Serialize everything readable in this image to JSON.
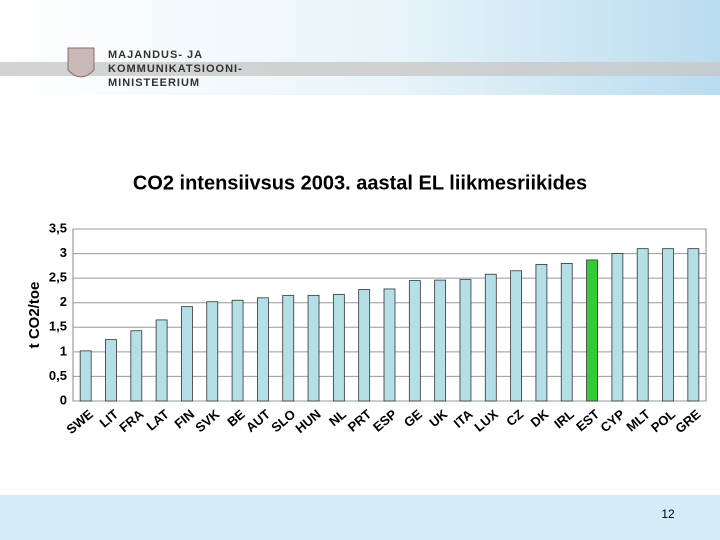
{
  "header": {
    "logo_lines": [
      "MAJANDUS- JA",
      "KOMMUNIKATSIOONI-",
      "MINISTEERIUM"
    ]
  },
  "chart_data": {
    "type": "bar",
    "title": "CO2 intensiivsus 2003. aastal EL liikmesriikides",
    "y_label": "t CO2/toe",
    "categories": [
      "SWE",
      "LIT",
      "FRA",
      "LAT",
      "FIN",
      "SVK",
      "BE",
      "AUT",
      "SLO",
      "HUN",
      "NL",
      "PRT",
      "ESP",
      "GE",
      "UK",
      "ITA",
      "LUX",
      "CZ",
      "DK",
      "IRL",
      "EST",
      "CYP",
      "MLT",
      "POL",
      "GRE"
    ],
    "values": [
      1.02,
      1.25,
      1.43,
      1.65,
      1.92,
      2.02,
      2.05,
      2.1,
      2.15,
      2.15,
      2.17,
      2.27,
      2.28,
      2.45,
      2.46,
      2.47,
      2.58,
      2.65,
      2.78,
      2.8,
      2.87,
      3.0,
      3.1,
      3.1,
      3.1
    ],
    "color": "#b4dfe6",
    "colors": [
      "#b4dfe6",
      "#b4dfe6",
      "#b4dfe6",
      "#b4dfe6",
      "#b4dfe6",
      "#b4dfe6",
      "#b4dfe6",
      "#b4dfe6",
      "#b4dfe6",
      "#b4dfe6",
      "#b4dfe6",
      "#b4dfe6",
      "#b4dfe6",
      "#b4dfe6",
      "#b4dfe6",
      "#b4dfe6",
      "#b4dfe6",
      "#b4dfe6",
      "#b4dfe6",
      "#b4dfe6",
      "#33cc33",
      "#b4dfe6",
      "#b4dfe6",
      "#b4dfe6",
      "#b4dfe6"
    ],
    "ylim": [
      0,
      3.5
    ],
    "yticks": [
      0,
      {
        "value": 0.5,
        "label": "0,5"
      },
      1,
      {
        "value": 1.5,
        "label": "1,5"
      },
      2,
      {
        "value": 2.5,
        "label": "2,5"
      },
      3,
      {
        "value": 3.5,
        "label": "3,5"
      }
    ],
    "grid": true
  },
  "footer": {
    "page_number": "12"
  }
}
